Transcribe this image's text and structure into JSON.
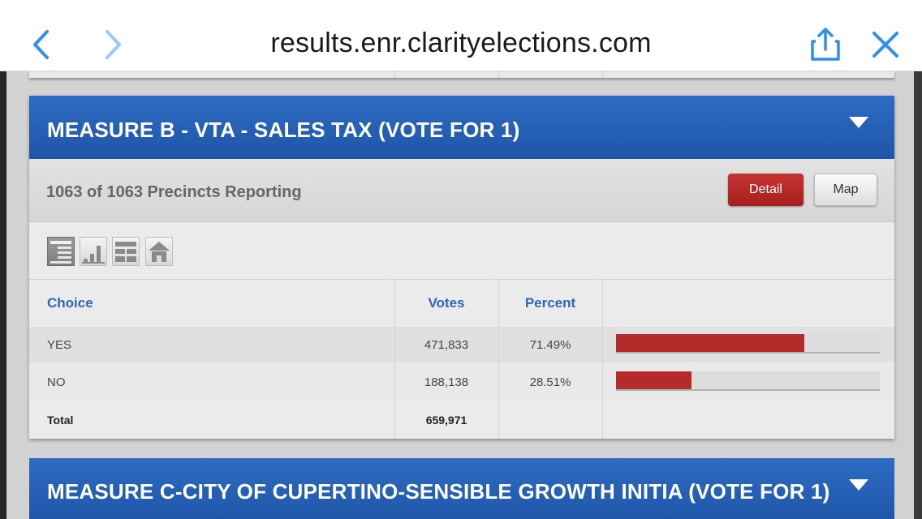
{
  "browser": {
    "url": "results.enr.clarityelections.com",
    "icons": [
      "chevron-left-icon",
      "chevron-right-icon",
      "share-icon",
      "close-icon"
    ],
    "accent_color": "#2f8ff0"
  },
  "contest": {
    "title": "MEASURE B - VTA - SALES TAX (VOTE FOR 1)",
    "reporting": "1063 of 1063 Precincts Reporting",
    "detail_label": "Detail",
    "map_label": "Map",
    "view_icons": [
      "summary-view-icon",
      "chart-view-icon",
      "table-view-icon",
      "home-view-icon"
    ],
    "columns": {
      "choice": "Choice",
      "votes": "Votes",
      "percent": "Percent"
    },
    "rows": [
      {
        "choice": "YES",
        "votes": "471,833",
        "percent": "71.49%",
        "share": 71.49
      },
      {
        "choice": "NO",
        "votes": "188,138",
        "percent": "28.51%",
        "share": 28.51
      }
    ],
    "total": {
      "label": "Total",
      "votes": "659,971"
    },
    "colors": {
      "header_blue": "#2563b6",
      "bar_red": "#b52a2a",
      "detail_red": "#b82828"
    }
  },
  "next_contest": {
    "title": "MEASURE C-CITY OF CUPERTINO-SENSIBLE GROWTH INITIA (VOTE FOR 1)"
  }
}
